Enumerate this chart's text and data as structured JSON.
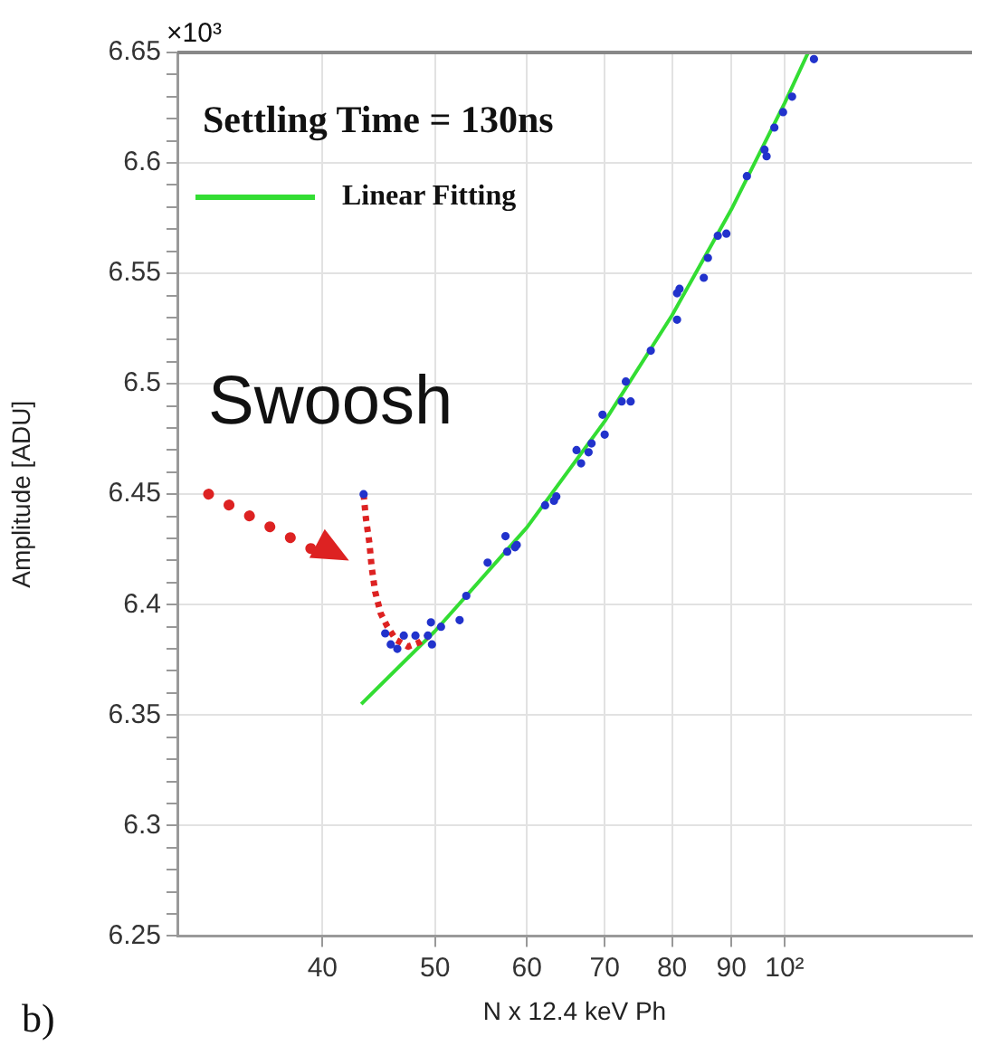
{
  "chart_data": {
    "type": "scatter",
    "xlabel": "N x 12.4 keV Ph",
    "ylabel": "Amplitude [ADU]",
    "log": "x",
    "grid": true,
    "legend": "top left",
    "xlim": [
      30,
      145
    ],
    "xticks": [
      40,
      50,
      60,
      70,
      80,
      90,
      {
        "value": 100,
        "label": "10²"
      }
    ],
    "ylim": [
      6.25,
      6.65
    ],
    "yticks": [
      6.25,
      {
        "value": 6.26,
        "label": null
      },
      {
        "value": 6.27,
        "label": null
      },
      {
        "value": 6.28,
        "label": null
      },
      {
        "value": 6.29,
        "label": null
      },
      6.3,
      {
        "value": 6.31,
        "label": null
      },
      {
        "value": 6.32,
        "label": null
      },
      {
        "value": 6.33,
        "label": null
      },
      {
        "value": 6.34,
        "label": null
      },
      6.35,
      {
        "value": 6.36,
        "label": null
      },
      {
        "value": 6.37,
        "label": null
      },
      {
        "value": 6.38,
        "label": null
      },
      {
        "value": 6.39,
        "label": null
      },
      6.4,
      {
        "value": 6.41,
        "label": null
      },
      {
        "value": 6.42,
        "label": null
      },
      {
        "value": 6.43,
        "label": null
      },
      {
        "value": 6.44,
        "label": null
      },
      6.45,
      {
        "value": 6.46,
        "label": null
      },
      {
        "value": 6.47,
        "label": null
      },
      {
        "value": 6.48,
        "label": null
      },
      {
        "value": 6.49,
        "label": null
      },
      6.5,
      {
        "value": 6.51,
        "label": null
      },
      {
        "value": 6.52,
        "label": null
      },
      {
        "value": 6.53,
        "label": null
      },
      {
        "value": 6.54,
        "label": null
      },
      6.55,
      {
        "value": 6.56,
        "label": null
      },
      {
        "value": 6.57,
        "label": null
      },
      {
        "value": 6.58,
        "label": null
      },
      {
        "value": 6.59,
        "label": null
      },
      6.6,
      {
        "value": 6.61,
        "label": null
      },
      {
        "value": 6.62,
        "label": null
      },
      {
        "value": 6.63,
        "label": null
      },
      {
        "value": 6.64,
        "label": null
      },
      6.65
    ],
    "annotations": [
      "×10³",
      "Settling Time = 130ns",
      "Swoosh",
      "b)"
    ],
    "series": [
      {
        "type": "line",
        "color": "#dd2222",
        "line_style": "dotted",
        "marker": "none",
        "x": [
          43.4,
          43.6,
          43.9,
          44.1,
          44.4,
          44.9,
          45.5,
          46.3,
          47.4,
          48.5,
          49.4
        ],
        "values": [
          6.45,
          6.439,
          6.428,
          6.417,
          6.406,
          6.396,
          6.39,
          6.384,
          6.381,
          6.383,
          6.386
        ]
      },
      {
        "type": "line",
        "name": "Linear Fitting",
        "color": "#33dd33",
        "line_style": "solid",
        "marker": "none",
        "x": [
          43.2,
          50,
          60,
          70,
          80,
          90,
          100,
          104.8
        ],
        "values": [
          6.355,
          6.388,
          6.435,
          6.483,
          6.531,
          6.579,
          6.627,
          6.65
        ]
      },
      {
        "color": "#2233cc",
        "marker": "circle",
        "x": [
          43.4,
          45.3,
          45.8,
          46.4,
          47,
          48.1,
          49.3,
          49.7,
          49.6,
          50.6,
          52.5,
          53.2,
          55.5,
          57.5,
          57.7,
          58.6,
          58.8,
          62.2,
          63.3,
          63.6,
          66.2,
          66.8,
          67.8,
          68.2,
          70,
          69.7,
          72.4,
          73.7,
          73,
          76.7,
          80.8,
          80.8,
          81.2,
          85.2,
          85.9,
          87.6,
          89.1,
          92.8,
          96.5,
          96.1,
          98,
          99.7,
          101.5,
          106
        ],
        "values": [
          6.45,
          6.387,
          6.382,
          6.38,
          6.386,
          6.386,
          6.386,
          6.382,
          6.392,
          6.39,
          6.393,
          6.404,
          6.419,
          6.431,
          6.424,
          6.426,
          6.427,
          6.445,
          6.447,
          6.449,
          6.47,
          6.464,
          6.469,
          6.473,
          6.477,
          6.486,
          6.492,
          6.492,
          6.501,
          6.515,
          6.529,
          6.541,
          6.543,
          6.548,
          6.557,
          6.567,
          6.568,
          6.594,
          6.603,
          6.606,
          6.616,
          6.623,
          6.63,
          6.647
        ]
      }
    ]
  }
}
